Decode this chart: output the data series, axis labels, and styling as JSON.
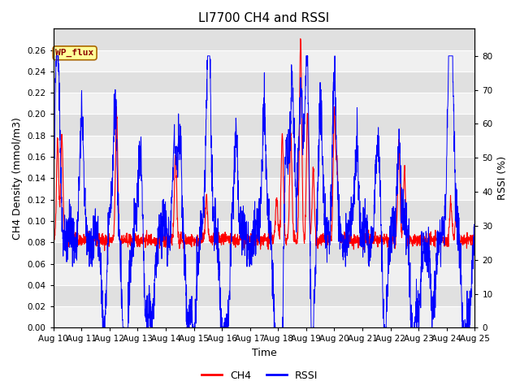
{
  "title": "LI7700 CH4 and RSSI",
  "xlabel": "Time",
  "ylabel_left": "CH4 Density (mmol/m3)",
  "ylabel_right": "RSSI (%)",
  "annotation": "WP_flux",
  "xlim_days": [
    10,
    25
  ],
  "ylim_left": [
    0.0,
    0.28
  ],
  "ylim_right": [
    0,
    88
  ],
  "yticks_left": [
    0.0,
    0.02,
    0.04,
    0.06,
    0.08,
    0.1,
    0.12,
    0.14,
    0.16,
    0.18,
    0.2,
    0.22,
    0.24,
    0.26
  ],
  "yticks_right": [
    0,
    10,
    20,
    30,
    40,
    50,
    60,
    70,
    80
  ],
  "xtick_labels": [
    "Aug 10",
    "Aug 11",
    "Aug 12",
    "Aug 13",
    "Aug 14",
    "Aug 15",
    "Aug 16",
    "Aug 17",
    "Aug 18",
    "Aug 19",
    "Aug 20",
    "Aug 21",
    "Aug 22",
    "Aug 23",
    "Aug 24",
    "Aug 25"
  ],
  "ch4_color": "#ff0000",
  "rssi_color": "#0000ff",
  "ch4_linewidth": 0.8,
  "rssi_linewidth": 0.7,
  "background_color": "#ffffff",
  "plot_bg_color": "#e0e0e0",
  "stripe_color": "#f0f0f0",
  "grid_color": "#ffffff",
  "annotation_bg": "#ffff99",
  "annotation_border": "#aa6600",
  "title_fontsize": 11,
  "label_fontsize": 9,
  "tick_fontsize": 7.5
}
